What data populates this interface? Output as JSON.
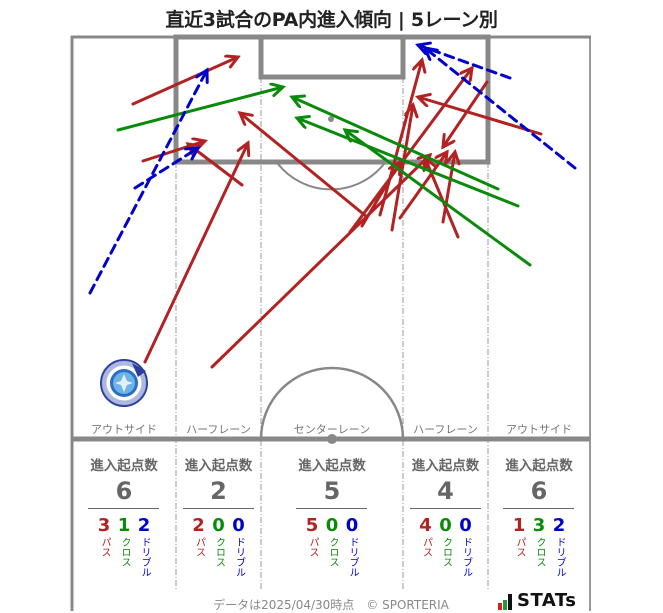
{
  "title": "直近3試合のPA内進入傾向 | 5レーン別",
  "colors": {
    "pass": "#b22222",
    "cross": "#0a8a0a",
    "dribble": "#0000cd",
    "pitch_line": "#888888",
    "text_gray": "#666666"
  },
  "count_labels": {
    "pass": "パス",
    "cross": "クロス",
    "dribble": "ドリブル"
  },
  "stat_heading": "進入起点数",
  "lanes": [
    {
      "label": "アウトサイド",
      "heading": "進入起点数",
      "total": "6",
      "pass": "3",
      "cross": "1",
      "dribble": "2"
    },
    {
      "label": "ハーフレーン",
      "heading": "進入起点数",
      "total": "2",
      "pass": "2",
      "cross": "0",
      "dribble": "0"
    },
    {
      "label": "センターレーン",
      "heading": "進入起点数",
      "total": "5",
      "pass": "5",
      "cross": "0",
      "dribble": "0"
    },
    {
      "label": "ハーフレーン",
      "heading": "進入起点数",
      "total": "4",
      "pass": "4",
      "cross": "0",
      "dribble": "0"
    },
    {
      "label": "アウトサイド",
      "heading": "進入起点数",
      "total": "6",
      "pass": "1",
      "cross": "3",
      "dribble": "2"
    }
  ],
  "pitch": {
    "arrows": [
      {
        "type": "pass",
        "from": [
          133,
          104
        ],
        "to": [
          238,
          57
        ]
      },
      {
        "type": "pass",
        "from": [
          143,
          161
        ],
        "to": [
          205,
          141
        ]
      },
      {
        "type": "pass",
        "from": [
          242,
          185
        ],
        "to": [
          188,
          144
        ]
      },
      {
        "type": "pass",
        "from": [
          145,
          362
        ],
        "to": [
          248,
          143
        ]
      },
      {
        "type": "pass",
        "from": [
          212,
          367
        ],
        "to": [
          430,
          155
        ]
      },
      {
        "type": "pass",
        "from": [
          367,
          217
        ],
        "to": [
          240,
          113
        ]
      },
      {
        "type": "pass",
        "from": [
          541,
          134
        ],
        "to": [
          418,
          97
        ]
      },
      {
        "type": "pass",
        "from": [
          487,
          82
        ],
        "to": [
          443,
          147
        ]
      },
      {
        "type": "pass",
        "from": [
          350,
          232
        ],
        "to": [
          472,
          68
        ]
      },
      {
        "type": "pass",
        "from": [
          380,
          215
        ],
        "to": [
          422,
          60
        ]
      },
      {
        "type": "pass",
        "from": [
          392,
          230
        ],
        "to": [
          413,
          105
        ]
      },
      {
        "type": "pass",
        "from": [
          400,
          218
        ],
        "to": [
          447,
          152
        ]
      },
      {
        "type": "pass",
        "from": [
          458,
          237
        ],
        "to": [
          425,
          158
        ]
      },
      {
        "type": "pass",
        "from": [
          443,
          222
        ],
        "to": [
          455,
          152
        ]
      },
      {
        "type": "pass",
        "from": [
          362,
          226
        ],
        "to": [
          400,
          162
        ]
      },
      {
        "type": "cross",
        "from": [
          118,
          130
        ],
        "to": [
          283,
          87
        ]
      },
      {
        "type": "cross",
        "from": [
          498,
          189
        ],
        "to": [
          292,
          97
        ]
      },
      {
        "type": "cross",
        "from": [
          518,
          206
        ],
        "to": [
          297,
          118
        ]
      },
      {
        "type": "cross",
        "from": [
          530,
          265
        ],
        "to": [
          345,
          130
        ]
      },
      {
        "type": "dribble",
        "from": [
          90,
          293
        ],
        "to": [
          207,
          70
        ]
      },
      {
        "type": "dribble",
        "from": [
          135,
          188
        ],
        "to": [
          198,
          148
        ]
      },
      {
        "type": "dribble",
        "from": [
          510,
          78
        ],
        "to": [
          418,
          45
        ]
      },
      {
        "type": "dribble",
        "from": [
          575,
          168
        ],
        "to": [
          425,
          48
        ]
      }
    ]
  },
  "footer": {
    "text": "データは2025/04/30時点　© SPORTERIA",
    "logo": "STATs"
  },
  "chart_data": {
    "type": "table",
    "title": "直近3試合のPA内進入傾向 | 5レーン別",
    "categories": [
      "アウトサイド",
      "ハーフレーン",
      "センターレーン",
      "ハーフレーン",
      "アウトサイド"
    ],
    "series": [
      {
        "name": "進入起点数",
        "values": [
          6,
          2,
          5,
          4,
          6
        ]
      },
      {
        "name": "パス",
        "values": [
          3,
          2,
          5,
          4,
          1
        ]
      },
      {
        "name": "クロス",
        "values": [
          1,
          0,
          0,
          0,
          3
        ]
      },
      {
        "name": "ドリブル",
        "values": [
          2,
          0,
          0,
          0,
          2
        ]
      }
    ],
    "legend": {
      "パス": "red solid arrow",
      "クロス": "green solid arrow",
      "ドリブル": "blue dashed arrow"
    }
  }
}
